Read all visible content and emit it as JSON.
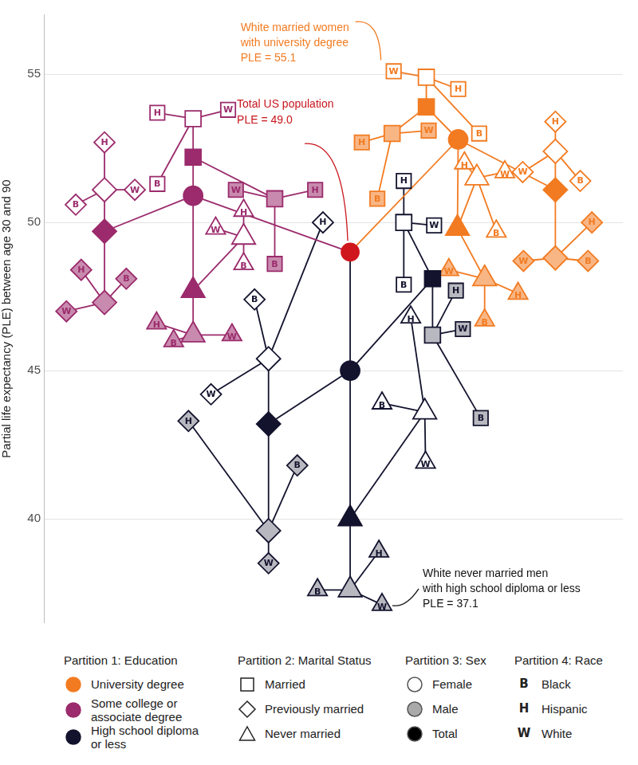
{
  "chart_data": {
    "type": "tree",
    "y_label": "Partial life expectancy (PLE) between age 30 and 90",
    "ylim": [
      36.5,
      57.0
    ],
    "yticks": [
      40,
      45,
      50,
      55
    ],
    "grid": true,
    "tick_labels": "y",
    "partitions": [
      {
        "name": "Partition 1: Education",
        "items": [
          {
            "name": "University degree",
            "color": "#f27b21"
          },
          {
            "name": "Some college or associate degree",
            "color": "#9b2b6c"
          },
          {
            "name": "High school diploma or less",
            "color": "#13132e"
          }
        ]
      },
      {
        "name": "Partition 2: Marital Status",
        "items": [
          {
            "name": "Married",
            "marker": "square"
          },
          {
            "name": "Previously married",
            "marker": "diamond"
          },
          {
            "name": "Never married",
            "marker": "triangle"
          }
        ]
      },
      {
        "name": "Partition 3: Sex",
        "items": [
          {
            "name": "Female",
            "color": "#ffffff"
          },
          {
            "name": "Male",
            "color": "#a9a9a9"
          },
          {
            "name": "Total",
            "color": "#000000"
          }
        ]
      },
      {
        "name": "Partition 4: Race",
        "items": [
          {
            "label": "B",
            "name": "Black"
          },
          {
            "label": "H",
            "name": "Hispanic"
          },
          {
            "label": "W",
            "name": "White"
          }
        ]
      }
    ],
    "tree": {
      "value": 49.0,
      "color": "#d0161d",
      "annotation": {
        "lines": [
          "Total US population",
          "PLE = 49.0"
        ],
        "color": "#c8161d"
      },
      "children": [
        {
          "category": "University degree",
          "value": 52.8,
          "children": [
            {
              "category": "Married",
              "value": 53.9,
              "children": [
                {
                  "category": "Female",
                  "value": 54.9,
                  "children": [
                    {
                      "category": "Black",
                      "value": 53.0
                    },
                    {
                      "category": "Hispanic",
                      "value": 54.5
                    },
                    {
                      "category": "White",
                      "value": 55.1,
                      "annotation": {
                        "lines": [
                          "White married women",
                          "with university degree",
                          "PLE = 55.1"
                        ],
                        "color": "#f27b21"
                      }
                    }
                  ]
                },
                {
                  "category": "Male",
                  "value": 53.0,
                  "children": [
                    {
                      "category": "Black",
                      "value": 50.8
                    },
                    {
                      "category": "Hispanic",
                      "value": 52.7
                    },
                    {
                      "category": "White",
                      "value": 53.1
                    }
                  ]
                }
              ]
            },
            {
              "category": "Previously married",
              "value": 51.1,
              "children": [
                {
                  "category": "Female",
                  "value": 52.4,
                  "children": [
                    {
                      "category": "Black",
                      "value": 51.4
                    },
                    {
                      "category": "Hispanic",
                      "value": 53.4
                    },
                    {
                      "category": "White",
                      "value": 51.7
                    }
                  ]
                },
                {
                  "category": "Male",
                  "value": 48.8,
                  "children": [
                    {
                      "category": "Black",
                      "value": 48.7
                    },
                    {
                      "category": "Hispanic",
                      "value": 50.0
                    },
                    {
                      "category": "White",
                      "value": 48.7
                    }
                  ]
                }
              ]
            },
            {
              "category": "Never married",
              "value": 49.8,
              "children": [
                {
                  "category": "Female",
                  "value": 51.5,
                  "children": [
                    {
                      "category": "Black",
                      "value": 49.7
                    },
                    {
                      "category": "Hispanic",
                      "value": 52.0
                    },
                    {
                      "category": "White",
                      "value": 51.7
                    }
                  ]
                },
                {
                  "category": "Male",
                  "value": 48.1,
                  "children": [
                    {
                      "category": "Black",
                      "value": 46.7
                    },
                    {
                      "category": "Hispanic",
                      "value": 47.6
                    },
                    {
                      "category": "White",
                      "value": 48.4
                    }
                  ]
                }
              ]
            }
          ]
        },
        {
          "category": "Some college or associate degree",
          "value": 50.9,
          "children": [
            {
              "category": "Married",
              "value": 52.2,
              "children": [
                {
                  "category": "Female",
                  "value": 53.5,
                  "children": [
                    {
                      "category": "Black",
                      "value": 51.3
                    },
                    {
                      "category": "Hispanic",
                      "value": 53.7
                    },
                    {
                      "category": "White",
                      "value": 53.8
                    }
                  ]
                },
                {
                  "category": "Male",
                  "value": 50.8,
                  "children": [
                    {
                      "category": "Black",
                      "value": 48.6
                    },
                    {
                      "category": "Hispanic",
                      "value": 51.1
                    },
                    {
                      "category": "White",
                      "value": 51.1
                    }
                  ]
                }
              ]
            },
            {
              "category": "Previously married",
              "value": 49.7,
              "children": [
                {
                  "category": "Female",
                  "value": 51.1,
                  "children": [
                    {
                      "category": "Black",
                      "value": 50.6
                    },
                    {
                      "category": "Hispanic",
                      "value": 52.7
                    },
                    {
                      "category": "White",
                      "value": 51.1
                    }
                  ]
                },
                {
                  "category": "Male",
                  "value": 47.3,
                  "children": [
                    {
                      "category": "Black",
                      "value": 48.1
                    },
                    {
                      "category": "Hispanic",
                      "value": 48.4
                    },
                    {
                      "category": "White",
                      "value": 47.0
                    }
                  ]
                }
              ]
            },
            {
              "category": "Never married",
              "value": 47.7,
              "children": [
                {
                  "category": "Female",
                  "value": 49.5,
                  "children": [
                    {
                      "category": "Black",
                      "value": 48.6
                    },
                    {
                      "category": "Hispanic",
                      "value": 50.4
                    },
                    {
                      "category": "White",
                      "value": 49.8
                    }
                  ]
                },
                {
                  "category": "Male",
                  "value": 46.2,
                  "children": [
                    {
                      "category": "Black",
                      "value": 46.0
                    },
                    {
                      "category": "Hispanic",
                      "value": 46.6
                    },
                    {
                      "category": "White",
                      "value": 46.2
                    }
                  ]
                }
              ]
            }
          ]
        },
        {
          "category": "High school diploma or less",
          "value": 45.0,
          "children": [
            {
              "category": "Married",
              "value": 48.1,
              "children": [
                {
                  "category": "Female",
                  "value": 50.0,
                  "children": [
                    {
                      "category": "Black",
                      "value": 47.9
                    },
                    {
                      "category": "Hispanic",
                      "value": 51.4
                    },
                    {
                      "category": "White",
                      "value": 49.9
                    }
                  ]
                },
                {
                  "category": "Male",
                  "value": 46.2,
                  "children": [
                    {
                      "category": "Black",
                      "value": 43.4
                    },
                    {
                      "category": "Hispanic",
                      "value": 47.7
                    },
                    {
                      "category": "White",
                      "value": 46.4
                    }
                  ]
                }
              ]
            },
            {
              "category": "Previously married",
              "value": 43.2,
              "children": [
                {
                  "category": "Female",
                  "value": 45.4,
                  "children": [
                    {
                      "category": "Black",
                      "value": 47.4
                    },
                    {
                      "category": "Hispanic",
                      "value": 50.0
                    },
                    {
                      "category": "White",
                      "value": 44.2
                    }
                  ]
                },
                {
                  "category": "Male",
                  "value": 39.6,
                  "children": [
                    {
                      "category": "Black",
                      "value": 41.8
                    },
                    {
                      "category": "Hispanic",
                      "value": 43.3
                    },
                    {
                      "category": "White",
                      "value": 38.5
                    }
                  ]
                }
              ]
            },
            {
              "category": "Never married",
              "value": 40.0,
              "children": [
                {
                  "category": "Female",
                  "value": 43.6,
                  "children": [
                    {
                      "category": "Black",
                      "value": 43.9
                    },
                    {
                      "category": "Hispanic",
                      "value": 46.8
                    },
                    {
                      "category": "White",
                      "value": 41.9
                    }
                  ]
                },
                {
                  "category": "Male",
                  "value": 37.6,
                  "children": [
                    {
                      "category": "Black",
                      "value": 37.6
                    },
                    {
                      "category": "Hispanic",
                      "value": 38.9
                    },
                    {
                      "category": "White",
                      "value": 37.1,
                      "annotation": {
                        "lines": [
                          "White never married men",
                          "with high school diploma or less",
                          "PLE = 37.1"
                        ],
                        "color": "#111111"
                      }
                    }
                  ]
                }
              ]
            }
          ]
        }
      ]
    }
  }
}
